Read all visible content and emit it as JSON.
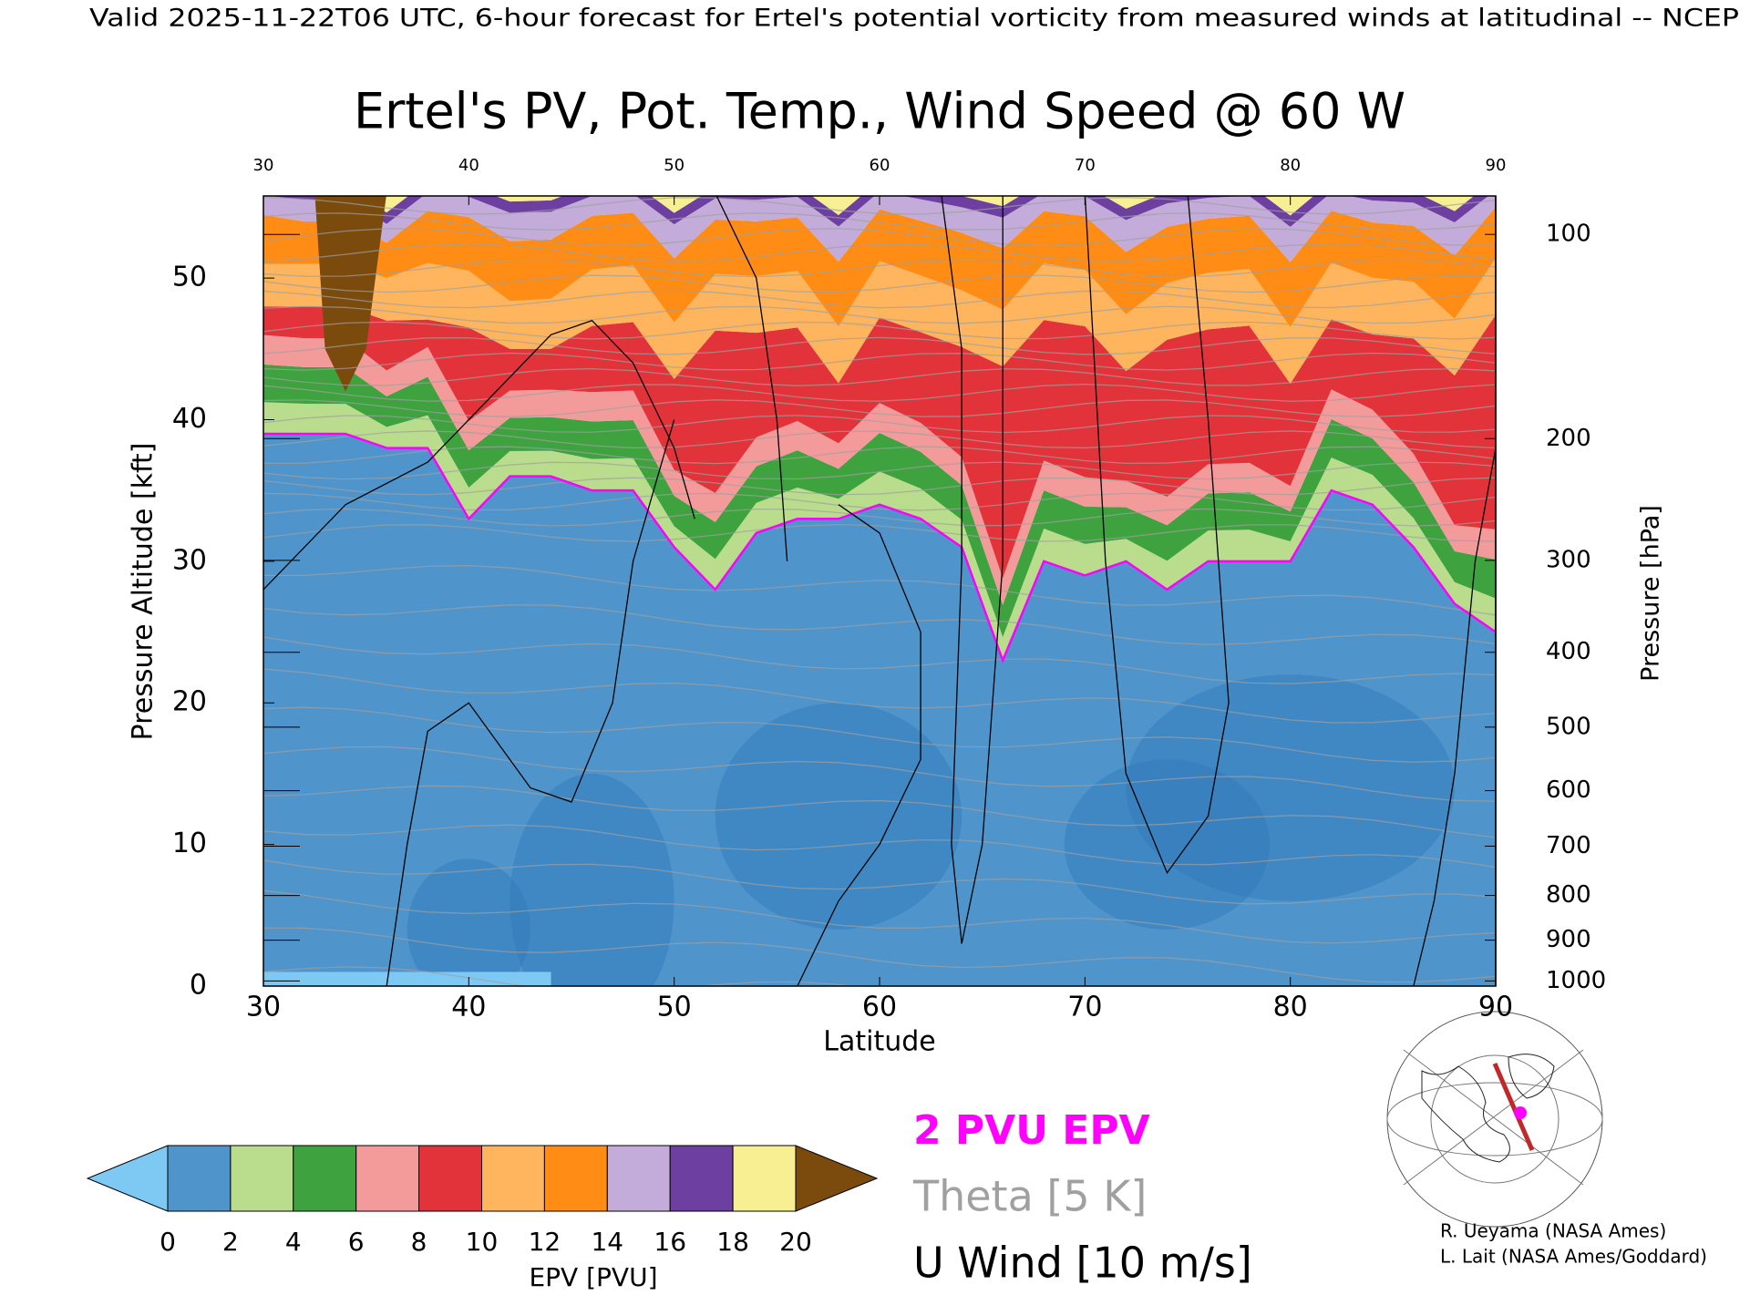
{
  "chart_data": {
    "type": "contour",
    "header": "Valid 2025-11-22T06 UTC, 6-hour forecast for Ertel's potential vorticity from measured winds at latitudinal -- NCEP",
    "title": "Ertel's PV, Pot. Temp., Wind Speed @ 60 W",
    "xlabel": "Latitude",
    "ylabel": "Pressure Altitude [kft]",
    "y2label": "Pressure [hPa]",
    "xlim": [
      30,
      90
    ],
    "xticks": [
      30,
      40,
      50,
      60,
      70,
      80,
      90
    ],
    "ylim": [
      0,
      55.8
    ],
    "yticks": [
      0,
      10,
      20,
      30,
      40,
      50
    ],
    "y2lim": [
      1013.25,
      87.7
    ],
    "y2scale": "pressure-altitude",
    "y2ticks": [
      100,
      200,
      300,
      400,
      500,
      600,
      700,
      800,
      900,
      1000
    ],
    "colorbar": {
      "label": "EPV [PVU]",
      "ticks": [
        0,
        2,
        4,
        6,
        8,
        10,
        12,
        14,
        16,
        18,
        20
      ],
      "colors": [
        "#4f95cc",
        "#b9dd8c",
        "#3ea23e",
        "#f39a9a",
        "#e2333a",
        "#ffb45e",
        "#ff8c14",
        "#c3acd9",
        "#6c3fa0",
        "#f7ef92"
      ],
      "under_color": "#7ec8f4",
      "over_color": "#7b4b0e"
    },
    "legend": [
      {
        "name": "2 PVU EPV",
        "color": "#ff00ff"
      },
      {
        "name": "Theta [5 K]",
        "color": "#a0a0a0"
      },
      {
        "name": "U Wind [10 m/s]",
        "color": "#000000"
      }
    ],
    "credits": [
      "R. Ueyama (NASA Ames)",
      "L. Lait (NASA Ames/Goddard)"
    ]
  }
}
